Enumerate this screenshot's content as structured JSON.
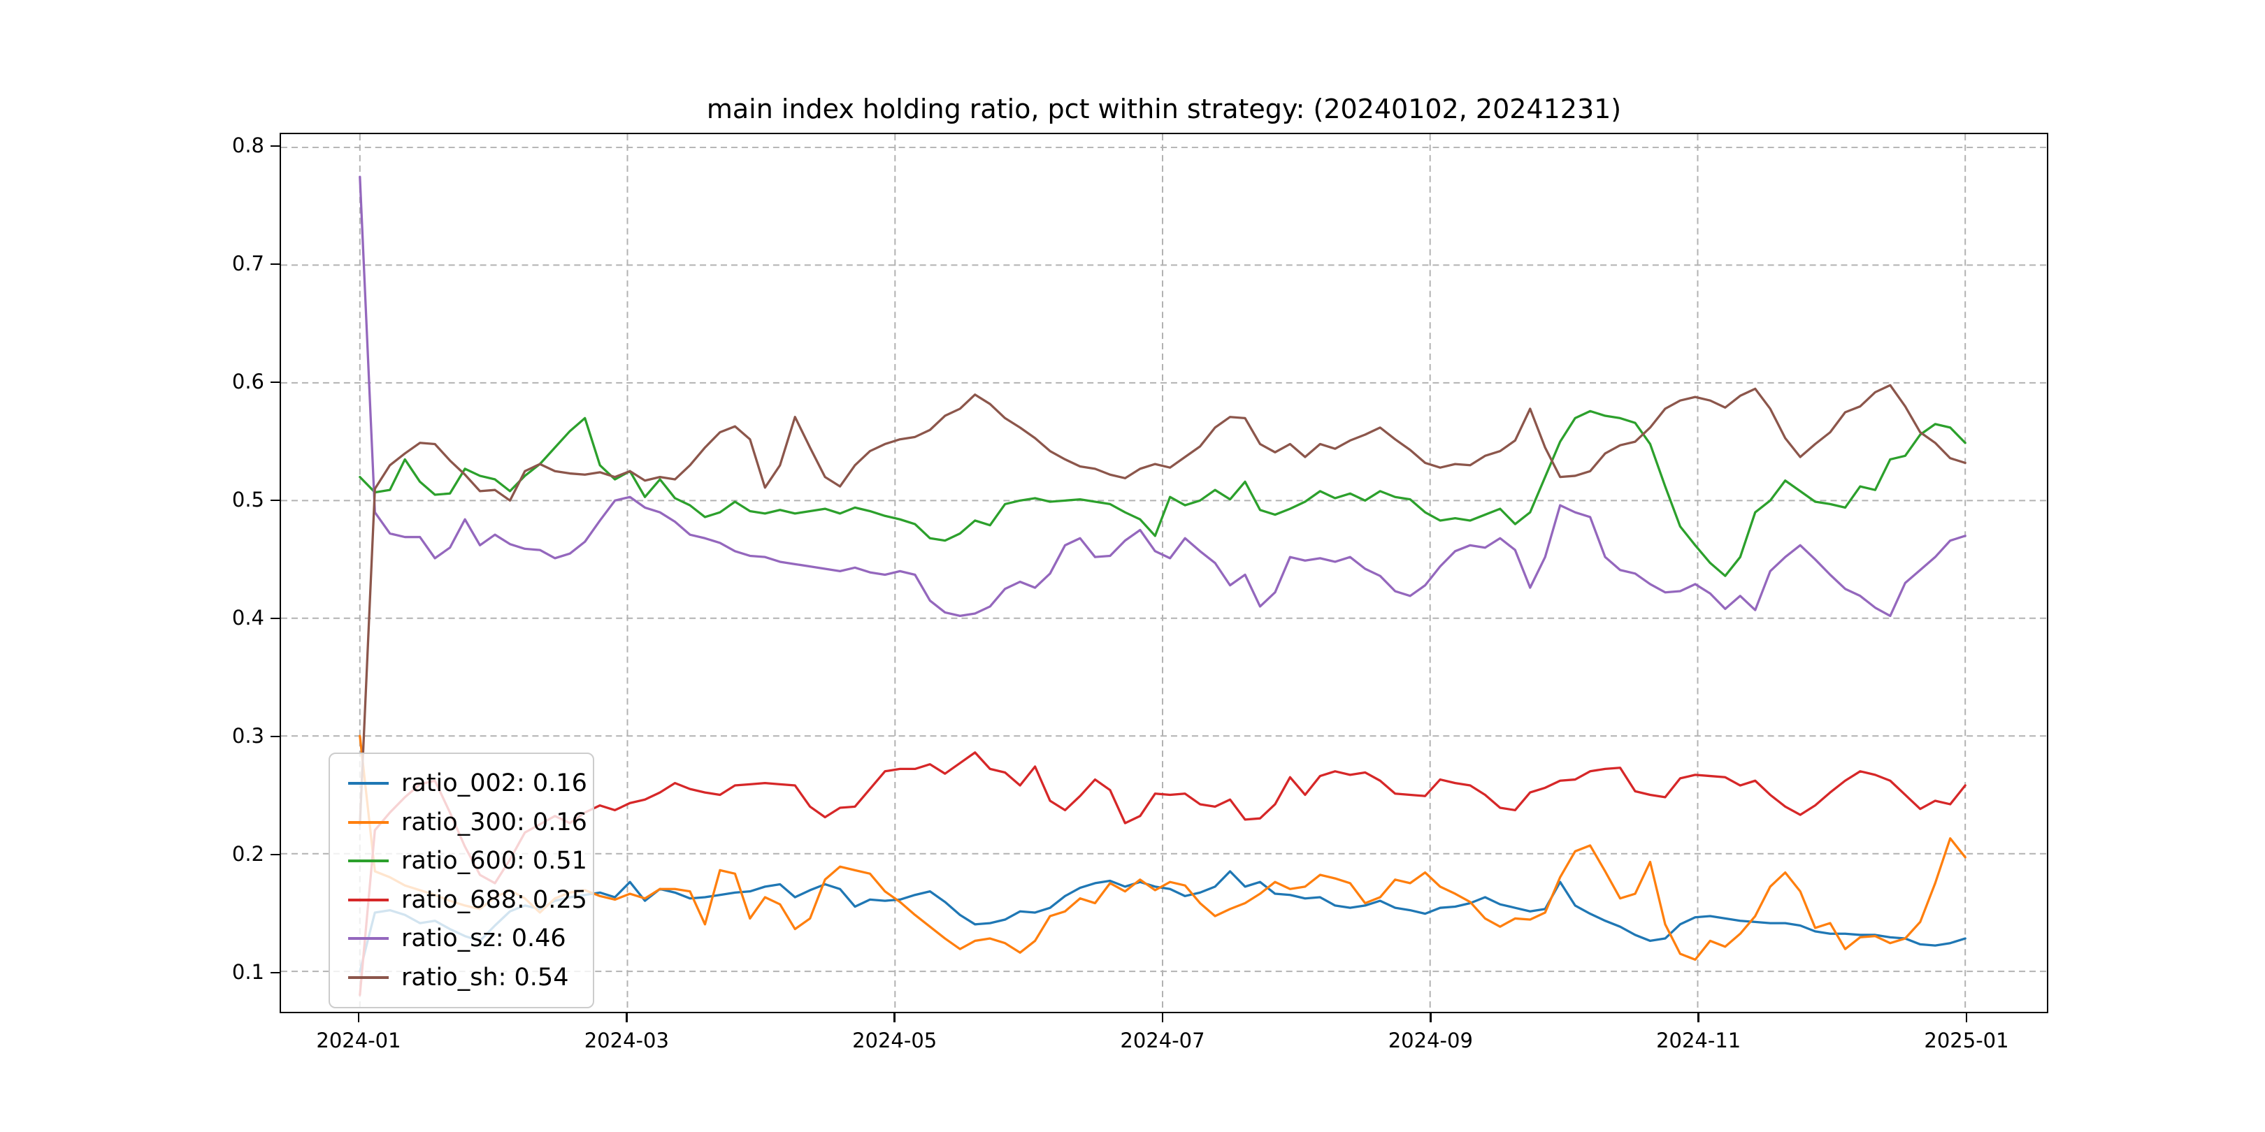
{
  "title": "main index holding ratio, pct within strategy: (20240102, 20241231)",
  "chart_data": {
    "type": "line",
    "title": "main index holding ratio, pct within strategy: (20240102, 20241231)",
    "xlabel": "",
    "ylabel": "",
    "x_tick_labels": [
      "2024-01",
      "2024-03",
      "2024-05",
      "2024-07",
      "2024-09",
      "2024-11",
      "2025-01"
    ],
    "y_ticks": [
      0.1,
      0.2,
      0.3,
      0.4,
      0.5,
      0.6,
      0.7,
      0.8
    ],
    "y_tick_labels": [
      "0.1",
      "0.2",
      "0.3",
      "0.4",
      "0.5",
      "0.6",
      "0.7",
      "0.8"
    ],
    "ylim": [
      0.066,
      0.812
    ],
    "grid": {
      "on": true,
      "style": "dashed",
      "color": "#b2b2b2"
    },
    "legend_position": "lower-left",
    "dates": [
      "01-02",
      "01-03",
      "01-05",
      "01-09",
      "01-12",
      "01-16",
      "01-19",
      "01-23",
      "01-26",
      "01-30",
      "02-02",
      "02-06",
      "02-08",
      "02-19",
      "02-21",
      "02-23",
      "02-27",
      "03-01",
      "03-05",
      "03-08",
      "03-12",
      "03-15",
      "03-19",
      "03-22",
      "03-26",
      "03-29",
      "04-02",
      "04-09",
      "04-12",
      "04-16",
      "04-19",
      "04-23",
      "04-26",
      "04-30",
      "05-07",
      "05-10",
      "05-14",
      "05-17",
      "05-21",
      "05-24",
      "05-28",
      "05-31",
      "06-04",
      "06-07",
      "06-11",
      "06-14",
      "06-18",
      "06-21",
      "06-25",
      "06-28",
      "07-02",
      "07-05",
      "07-09",
      "07-12",
      "07-16",
      "07-19",
      "07-23",
      "07-26",
      "07-30",
      "08-02",
      "08-06",
      "08-09",
      "08-13",
      "08-16",
      "08-20",
      "08-23",
      "08-27",
      "08-30",
      "09-03",
      "09-06",
      "09-10",
      "09-13",
      "09-18",
      "09-20",
      "09-24",
      "09-26",
      "09-30",
      "10-08",
      "10-10",
      "10-14",
      "10-16",
      "10-18",
      "10-22",
      "10-24",
      "10-28",
      "10-30",
      "11-01",
      "11-05",
      "11-07",
      "11-11",
      "11-13",
      "11-15",
      "11-19",
      "11-21",
      "11-25",
      "11-27",
      "11-29",
      "12-03",
      "12-05",
      "12-09",
      "12-11",
      "12-13",
      "12-17",
      "12-19",
      "12-23",
      "12-25",
      "12-27",
      "12-31"
    ],
    "series": [
      {
        "name": "ratio_002",
        "legend_label": "ratio_002: 0.16",
        "color": "#1f77b4",
        "values": [
          0.1,
          0.15,
          0.152,
          0.148,
          0.141,
          0.143,
          0.136,
          0.13,
          0.126,
          0.139,
          0.151,
          0.156,
          0.153,
          0.16,
          0.163,
          0.165,
          0.167,
          0.163,
          0.176,
          0.16,
          0.17,
          0.167,
          0.162,
          0.163,
          0.165,
          0.167,
          0.168,
          0.172,
          0.174,
          0.163,
          0.169,
          0.174,
          0.17,
          0.155,
          0.161,
          0.16,
          0.161,
          0.165,
          0.168,
          0.159,
          0.148,
          0.14,
          0.141,
          0.144,
          0.151,
          0.15,
          0.154,
          0.164,
          0.171,
          0.175,
          0.177,
          0.172,
          0.176,
          0.172,
          0.17,
          0.164,
          0.167,
          0.172,
          0.185,
          0.172,
          0.176,
          0.166,
          0.165,
          0.162,
          0.163,
          0.156,
          0.154,
          0.156,
          0.16,
          0.154,
          0.152,
          0.149,
          0.154,
          0.155,
          0.158,
          0.163,
          0.157,
          0.154,
          0.151,
          0.153,
          0.176,
          0.156,
          0.149,
          0.143,
          0.138,
          0.131,
          0.126,
          0.128,
          0.14,
          0.146,
          0.147,
          0.145,
          0.143,
          0.142,
          0.141,
          0.141,
          0.139,
          0.134,
          0.132,
          0.132,
          0.131,
          0.131,
          0.129,
          0.128,
          0.123,
          0.122,
          0.124,
          0.128
        ]
      },
      {
        "name": "ratio_300",
        "legend_label": "ratio_300: 0.16",
        "color": "#ff7f0e",
        "values": [
          0.3,
          0.185,
          0.18,
          0.173,
          0.169,
          0.165,
          0.16,
          0.156,
          0.153,
          0.163,
          0.169,
          0.162,
          0.15,
          0.162,
          0.167,
          0.169,
          0.164,
          0.161,
          0.166,
          0.162,
          0.17,
          0.17,
          0.168,
          0.14,
          0.186,
          0.183,
          0.145,
          0.163,
          0.157,
          0.136,
          0.145,
          0.178,
          0.189,
          0.186,
          0.183,
          0.168,
          0.159,
          0.148,
          0.138,
          0.128,
          0.119,
          0.126,
          0.128,
          0.124,
          0.116,
          0.126,
          0.147,
          0.151,
          0.162,
          0.158,
          0.175,
          0.168,
          0.178,
          0.169,
          0.176,
          0.173,
          0.158,
          0.147,
          0.153,
          0.158,
          0.166,
          0.176,
          0.17,
          0.172,
          0.182,
          0.179,
          0.175,
          0.158,
          0.163,
          0.178,
          0.175,
          0.184,
          0.172,
          0.166,
          0.159,
          0.145,
          0.138,
          0.145,
          0.144,
          0.15,
          0.18,
          0.202,
          0.207,
          0.185,
          0.162,
          0.166,
          0.193,
          0.14,
          0.115,
          0.11,
          0.126,
          0.121,
          0.132,
          0.147,
          0.172,
          0.184,
          0.168,
          0.137,
          0.141,
          0.119,
          0.129,
          0.13,
          0.124,
          0.128,
          0.142,
          0.175,
          0.213,
          0.197
        ]
      },
      {
        "name": "ratio_600",
        "legend_label": "ratio_600: 0.51",
        "color": "#2ca02c",
        "values": [
          0.52,
          0.507,
          0.509,
          0.535,
          0.516,
          0.505,
          0.506,
          0.527,
          0.521,
          0.518,
          0.508,
          0.521,
          0.531,
          0.545,
          0.559,
          0.57,
          0.53,
          0.518,
          0.525,
          0.503,
          0.518,
          0.502,
          0.496,
          0.486,
          0.49,
          0.499,
          0.491,
          0.489,
          0.492,
          0.489,
          0.491,
          0.493,
          0.489,
          0.494,
          0.491,
          0.487,
          0.484,
          0.48,
          0.468,
          0.466,
          0.472,
          0.483,
          0.479,
          0.497,
          0.5,
          0.502,
          0.499,
          0.5,
          0.501,
          0.499,
          0.497,
          0.49,
          0.484,
          0.47,
          0.503,
          0.496,
          0.5,
          0.509,
          0.501,
          0.516,
          0.492,
          0.488,
          0.493,
          0.499,
          0.508,
          0.502,
          0.506,
          0.5,
          0.508,
          0.503,
          0.501,
          0.49,
          0.483,
          0.485,
          0.483,
          0.488,
          0.493,
          0.48,
          0.49,
          0.52,
          0.55,
          0.57,
          0.576,
          0.572,
          0.57,
          0.566,
          0.548,
          0.512,
          0.478,
          0.462,
          0.447,
          0.436,
          0.452,
          0.49,
          0.5,
          0.517,
          0.508,
          0.499,
          0.497,
          0.494,
          0.512,
          0.509,
          0.535,
          0.538,
          0.556,
          0.565,
          0.562,
          0.549
        ]
      },
      {
        "name": "ratio_688",
        "legend_label": "ratio_688: 0.25",
        "color": "#d62728",
        "values": [
          0.08,
          0.22,
          0.235,
          0.248,
          0.259,
          0.262,
          0.235,
          0.206,
          0.182,
          0.175,
          0.195,
          0.218,
          0.225,
          0.232,
          0.226,
          0.235,
          0.241,
          0.237,
          0.243,
          0.246,
          0.252,
          0.26,
          0.255,
          0.252,
          0.25,
          0.258,
          0.259,
          0.26,
          0.259,
          0.258,
          0.24,
          0.231,
          0.239,
          0.24,
          0.255,
          0.27,
          0.272,
          0.272,
          0.276,
          0.268,
          0.277,
          0.286,
          0.272,
          0.269,
          0.258,
          0.274,
          0.245,
          0.237,
          0.249,
          0.263,
          0.254,
          0.226,
          0.232,
          0.251,
          0.25,
          0.251,
          0.242,
          0.24,
          0.246,
          0.229,
          0.23,
          0.242,
          0.265,
          0.25,
          0.266,
          0.27,
          0.267,
          0.269,
          0.262,
          0.251,
          0.25,
          0.249,
          0.263,
          0.26,
          0.258,
          0.25,
          0.239,
          0.237,
          0.252,
          0.256,
          0.262,
          0.263,
          0.27,
          0.272,
          0.273,
          0.253,
          0.25,
          0.248,
          0.264,
          0.267,
          0.266,
          0.265,
          0.258,
          0.262,
          0.25,
          0.24,
          0.233,
          0.241,
          0.252,
          0.262,
          0.27,
          0.267,
          0.262,
          0.25,
          0.238,
          0.245,
          0.242,
          0.258
        ]
      },
      {
        "name": "ratio_sz",
        "legend_label": "ratio_sz: 0.46",
        "color": "#9467bd",
        "values": [
          0.775,
          0.49,
          0.472,
          0.469,
          0.469,
          0.451,
          0.46,
          0.484,
          0.462,
          0.471,
          0.463,
          0.459,
          0.458,
          0.451,
          0.455,
          0.465,
          0.483,
          0.5,
          0.503,
          0.494,
          0.49,
          0.482,
          0.471,
          0.468,
          0.464,
          0.457,
          0.453,
          0.452,
          0.448,
          0.446,
          0.444,
          0.442,
          0.44,
          0.443,
          0.439,
          0.437,
          0.44,
          0.437,
          0.415,
          0.405,
          0.402,
          0.404,
          0.41,
          0.425,
          0.431,
          0.426,
          0.438,
          0.462,
          0.468,
          0.452,
          0.453,
          0.466,
          0.475,
          0.457,
          0.451,
          0.468,
          0.457,
          0.447,
          0.428,
          0.437,
          0.41,
          0.422,
          0.452,
          0.449,
          0.451,
          0.448,
          0.452,
          0.442,
          0.436,
          0.423,
          0.419,
          0.428,
          0.444,
          0.457,
          0.462,
          0.46,
          0.468,
          0.458,
          0.426,
          0.452,
          0.496,
          0.49,
          0.486,
          0.452,
          0.441,
          0.438,
          0.429,
          0.422,
          0.423,
          0.429,
          0.421,
          0.408,
          0.419,
          0.407,
          0.44,
          0.452,
          0.462,
          0.45,
          0.437,
          0.425,
          0.419,
          0.409,
          0.402,
          0.43,
          0.441,
          0.452,
          0.466,
          0.47
        ]
      },
      {
        "name": "ratio_sh",
        "legend_label": "ratio_sh: 0.54",
        "color": "#8c564b",
        "values": [
          0.225,
          0.51,
          0.53,
          0.54,
          0.549,
          0.548,
          0.534,
          0.522,
          0.508,
          0.509,
          0.5,
          0.525,
          0.531,
          0.525,
          0.523,
          0.522,
          0.524,
          0.52,
          0.525,
          0.517,
          0.52,
          0.518,
          0.53,
          0.545,
          0.558,
          0.563,
          0.552,
          0.511,
          0.53,
          0.571,
          0.545,
          0.52,
          0.512,
          0.53,
          0.542,
          0.548,
          0.552,
          0.554,
          0.56,
          0.572,
          0.578,
          0.59,
          0.582,
          0.57,
          0.562,
          0.553,
          0.542,
          0.535,
          0.529,
          0.527,
          0.522,
          0.519,
          0.527,
          0.531,
          0.528,
          0.537,
          0.546,
          0.562,
          0.571,
          0.57,
          0.548,
          0.541,
          0.548,
          0.537,
          0.548,
          0.544,
          0.551,
          0.556,
          0.562,
          0.552,
          0.543,
          0.532,
          0.528,
          0.531,
          0.53,
          0.538,
          0.542,
          0.551,
          0.578,
          0.545,
          0.52,
          0.521,
          0.525,
          0.54,
          0.547,
          0.55,
          0.562,
          0.578,
          0.585,
          0.588,
          0.585,
          0.579,
          0.589,
          0.595,
          0.578,
          0.553,
          0.537,
          0.548,
          0.558,
          0.575,
          0.58,
          0.592,
          0.598,
          0.58,
          0.558,
          0.549,
          0.536,
          0.532
        ]
      }
    ]
  }
}
